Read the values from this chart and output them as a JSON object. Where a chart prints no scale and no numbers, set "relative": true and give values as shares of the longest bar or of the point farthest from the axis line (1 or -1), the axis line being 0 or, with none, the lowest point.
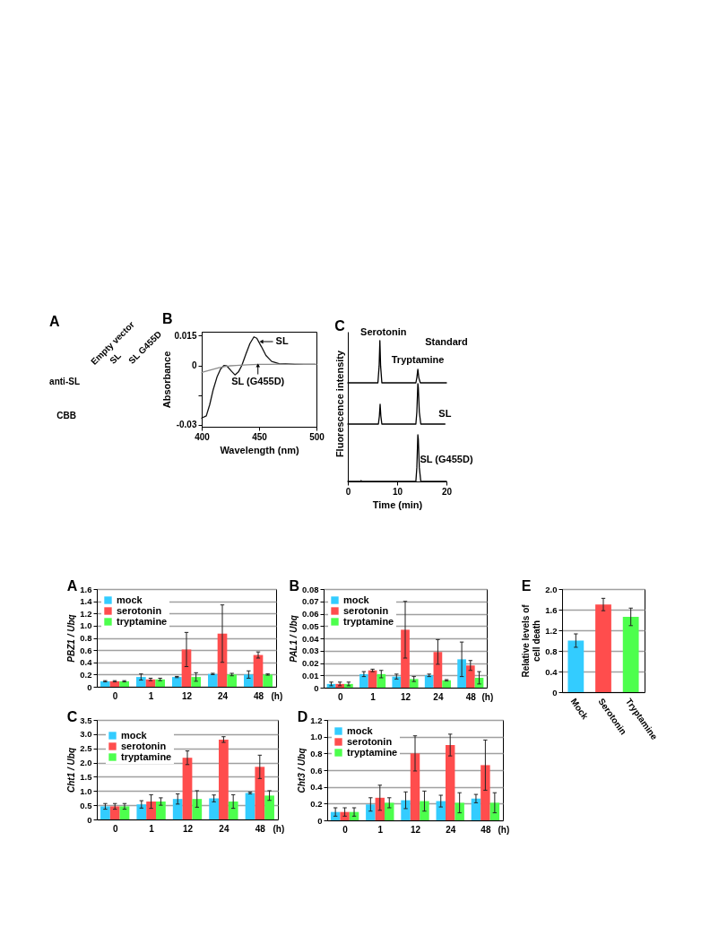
{
  "chart_data": [
    {
      "type": "other",
      "title": "A",
      "annotations": [
        "Empty vector",
        "SL",
        "SL G455D",
        "anti-SL",
        "CBB"
      ]
    },
    {
      "type": "line",
      "title": "B",
      "xlabel": "Wavelength (nm)",
      "ylabel": "Absorbance",
      "xlim": [
        400,
        500
      ],
      "xticks": [
        400,
        450,
        500
      ],
      "ylim": [
        -0.031,
        0.017
      ],
      "yticks": [
        0.015,
        0,
        {
          "value": -0.015,
          "label": null
        },
        -0.03
      ],
      "series": [
        {
          "color": "#111111",
          "x": [
            400,
            404,
            407,
            410,
            413.5,
            416.5,
            419.5,
            422,
            426,
            429,
            432,
            435,
            438.5,
            442,
            445.5,
            448,
            452,
            456,
            461,
            468,
            473,
            481,
            489,
            499
          ],
          "values": [
            -0.0266,
            -0.0255,
            -0.0198,
            -0.0123,
            -0.0056,
            -0.0018,
            0,
            -0.0003,
            -0.003,
            -0.0048,
            -0.0033,
            0,
            0.0057,
            0.011,
            0.0144,
            0.0137,
            0.0095,
            0.005,
            0.002,
            0.0008,
            0.0009,
            0.0005,
            0.0005,
            0.0005
          ]
        },
        {
          "color": "#8c8c8c",
          "x": [
            400,
            405,
            410,
            415,
            420,
            425,
            430,
            440,
            450,
            460,
            470,
            480,
            490,
            500
          ],
          "values": [
            -0.0036,
            -0.0028,
            -0.002,
            -0.0012,
            -0.0006,
            -0.0002,
            0,
            0.0003,
            0.0005,
            0.0005,
            0.0006,
            0.0006,
            0.0005,
            0.0005
          ]
        }
      ],
      "annotations": [
        {
          "text": "SL",
          "x": 452,
          "y": 0.012
        },
        {
          "text": "SL (G455D)",
          "x": 449,
          "y": 0
        }
      ]
    },
    {
      "type": "line",
      "title": "C",
      "relative": true,
      "xlim": [
        0,
        20
      ],
      "xticks": [
        0,
        10,
        20
      ],
      "tick_labels": false,
      "series": [
        {
          "name": "Standard",
          "color": "#000000",
          "x": [
            0,
            6.1,
            6.35,
            6.5,
            6.65,
            6.9,
            13.8,
            14.0,
            14.2,
            14.4,
            14.7,
            20
          ],
          "values": [
            0,
            0,
            0.4,
            1,
            0.4,
            0,
            0,
            0.12,
            0.32,
            0.12,
            0,
            0
          ]
        }
      ],
      "annotations": [
        {
          "text": "Serotonin",
          "x": 6.5,
          "y": 1
        },
        {
          "text": "Tryptamine",
          "x": 14.2,
          "y": 0.32
        }
      ]
    },
    {
      "type": "line",
      "relative": true,
      "ylabel": "Fluorescence intensity",
      "xlim": [
        0,
        20
      ],
      "xticks": [
        0,
        10,
        20
      ],
      "tick_labels": false,
      "series": [
        {
          "name": "SL",
          "color": "#000000",
          "x": [
            0,
            6.2,
            6.4,
            6.55,
            6.7,
            6.9,
            13.8,
            14.0,
            14.2,
            14.3,
            14.5,
            14.8,
            19.7
          ],
          "values": [
            0,
            0,
            0.2,
            0.49,
            0.2,
            0,
            0,
            0.3,
            1,
            0.9,
            0.3,
            0,
            0
          ]
        }
      ]
    },
    {
      "type": "line",
      "relative": true,
      "xlabel": "Time (min)",
      "xlim": [
        0,
        20
      ],
      "xticks": [
        0,
        10,
        20
      ],
      "tick_labels": "x",
      "series": [
        {
          "name": "SL (G455D)",
          "color": "#000000",
          "x": [
            0,
            2.6,
            2.7,
            2.8,
            13.8,
            14.0,
            14.2,
            14.3,
            14.5,
            14.8,
            20
          ],
          "values": [
            0,
            0,
            0.02,
            0,
            0,
            0.3,
            1,
            0.9,
            0.3,
            0,
            0
          ]
        }
      ]
    },
    {
      "type": "bar",
      "title": "A",
      "ylabel": "PBZ1 / Ubq",
      "xlabel": "(h)",
      "categories": [
        "0",
        "1",
        "12",
        "24",
        "48"
      ],
      "ylim": [
        0,
        1.6
      ],
      "yticks": [
        0,
        0.2,
        0.4,
        0.6,
        0.8,
        {
          "value": 1,
          "label": "1.0"
        },
        1.2,
        1.4,
        1.6
      ],
      "grid": "y",
      "legend": "top left",
      "series": [
        {
          "name": "mock",
          "color": "#33ccff",
          "values": [
            0.09,
            0.16,
            0.16,
            0.21,
            0.2
          ],
          "errors": [
            0.01,
            0.05,
            0.01,
            0.01,
            0.06
          ]
        },
        {
          "name": "serotonin",
          "color": "#ff4d4d",
          "values": [
            0.09,
            0.12,
            0.61,
            0.87,
            0.52
          ],
          "errors": [
            0.01,
            0.02,
            0.28,
            0.47,
            0.05
          ]
        },
        {
          "name": "tryptamine",
          "color": "#4dff4d",
          "values": [
            0.09,
            0.12,
            0.16,
            0.2,
            0.2
          ],
          "errors": [
            0.01,
            0.02,
            0.07,
            0.02,
            0.01
          ]
        }
      ]
    },
    {
      "type": "bar",
      "title": "B",
      "ylabel": "PAL1 / Ubq",
      "xlabel": "(h)",
      "categories": [
        "0",
        "1",
        "12",
        "24",
        "48"
      ],
      "ylim": [
        0,
        0.08
      ],
      "yticks": [
        0,
        0.01,
        0.02,
        0.03,
        0.04,
        0.05,
        0.06,
        0.07,
        0.08
      ],
      "grid": "y",
      "legend": "top left",
      "series": [
        {
          "name": "mock",
          "color": "#33ccff",
          "values": [
            0.003,
            0.011,
            0.009,
            0.01,
            0.023
          ],
          "errors": [
            0.0015,
            0.002,
            0.002,
            0.001,
            0.014
          ]
        },
        {
          "name": "serotonin",
          "color": "#ff4d4d",
          "values": [
            0.003,
            0.014,
            0.047,
            0.029,
            0.018
          ],
          "errors": [
            0.0015,
            0.001,
            0.023,
            0.01,
            0.004
          ]
        },
        {
          "name": "tryptamine",
          "color": "#4dff4d",
          "values": [
            0.003,
            0.011,
            0.007,
            0.006,
            0.008
          ],
          "errors": [
            0.0015,
            0.003,
            0.002,
            0.0005,
            0.005
          ]
        }
      ]
    },
    {
      "type": "bar",
      "title": "C",
      "ylabel": "Cht1 / Ubq",
      "xlabel": "(h)",
      "categories": [
        "0",
        "1",
        "12",
        "24",
        "48"
      ],
      "ylim": [
        0,
        3.5
      ],
      "yticks": [
        0,
        0.5,
        {
          "value": 1,
          "label": "1.0"
        },
        1.5,
        {
          "value": 2,
          "label": "2.0"
        },
        2.5,
        {
          "value": 3,
          "label": "3.0"
        },
        3.5
      ],
      "grid": "y",
      "legend": "top left",
      "series": [
        {
          "name": "mock",
          "color": "#33ccff",
          "values": [
            0.46,
            0.53,
            0.72,
            0.74,
            0.93
          ],
          "errors": [
            0.1,
            0.13,
            0.18,
            0.12,
            0.03
          ]
        },
        {
          "name": "serotonin",
          "color": "#ff4d4d",
          "values": [
            0.46,
            0.63,
            2.17,
            2.81,
            1.85
          ],
          "errors": [
            0.1,
            0.24,
            0.24,
            0.1,
            0.41
          ]
        },
        {
          "name": "tryptamine",
          "color": "#4dff4d",
          "values": [
            0.46,
            0.63,
            0.72,
            0.63,
            0.84
          ],
          "errors": [
            0.1,
            0.13,
            0.29,
            0.24,
            0.17
          ]
        }
      ]
    },
    {
      "type": "bar",
      "title": "D",
      "ylabel": "Cht3 / Ubq",
      "xlabel": "(h)",
      "categories": [
        "0",
        "1",
        "12",
        "24",
        "48"
      ],
      "ylim": [
        0,
        1.2
      ],
      "yticks": [
        0,
        0.2,
        0.4,
        0.6,
        0.8,
        {
          "value": 1,
          "label": "1.0"
        },
        1.2
      ],
      "grid": "y",
      "legend": "top left",
      "series": [
        {
          "name": "mock",
          "color": "#33ccff",
          "values": [
            0.1,
            0.19,
            0.24,
            0.23,
            0.26
          ],
          "errors": [
            0.05,
            0.08,
            0.1,
            0.07,
            0.05
          ]
        },
        {
          "name": "serotonin",
          "color": "#ff4d4d",
          "values": [
            0.1,
            0.27,
            0.8,
            0.9,
            0.66
          ],
          "errors": [
            0.05,
            0.15,
            0.21,
            0.13,
            0.3
          ]
        },
        {
          "name": "tryptamine",
          "color": "#4dff4d",
          "values": [
            0.1,
            0.21,
            0.23,
            0.21,
            0.21
          ],
          "errors": [
            0.05,
            0.06,
            0.12,
            0.12,
            0.12
          ]
        }
      ]
    },
    {
      "type": "bar",
      "title": "E",
      "ylabel": "Relative levels of cell death",
      "categories": [
        "Mock",
        "Serotonin",
        "Tryptamine"
      ],
      "values": [
        1,
        1.7,
        1.46
      ],
      "errors": [
        0.13,
        0.12,
        0.17
      ],
      "colors": [
        "#33ccff",
        "#ff4d4d",
        "#4dff4d"
      ],
      "ylim": [
        0,
        2
      ],
      "yticks": [
        0,
        0.4,
        0.8,
        1.2,
        1.6,
        {
          "value": 2,
          "label": "2.0"
        }
      ],
      "grid": "y"
    }
  ]
}
